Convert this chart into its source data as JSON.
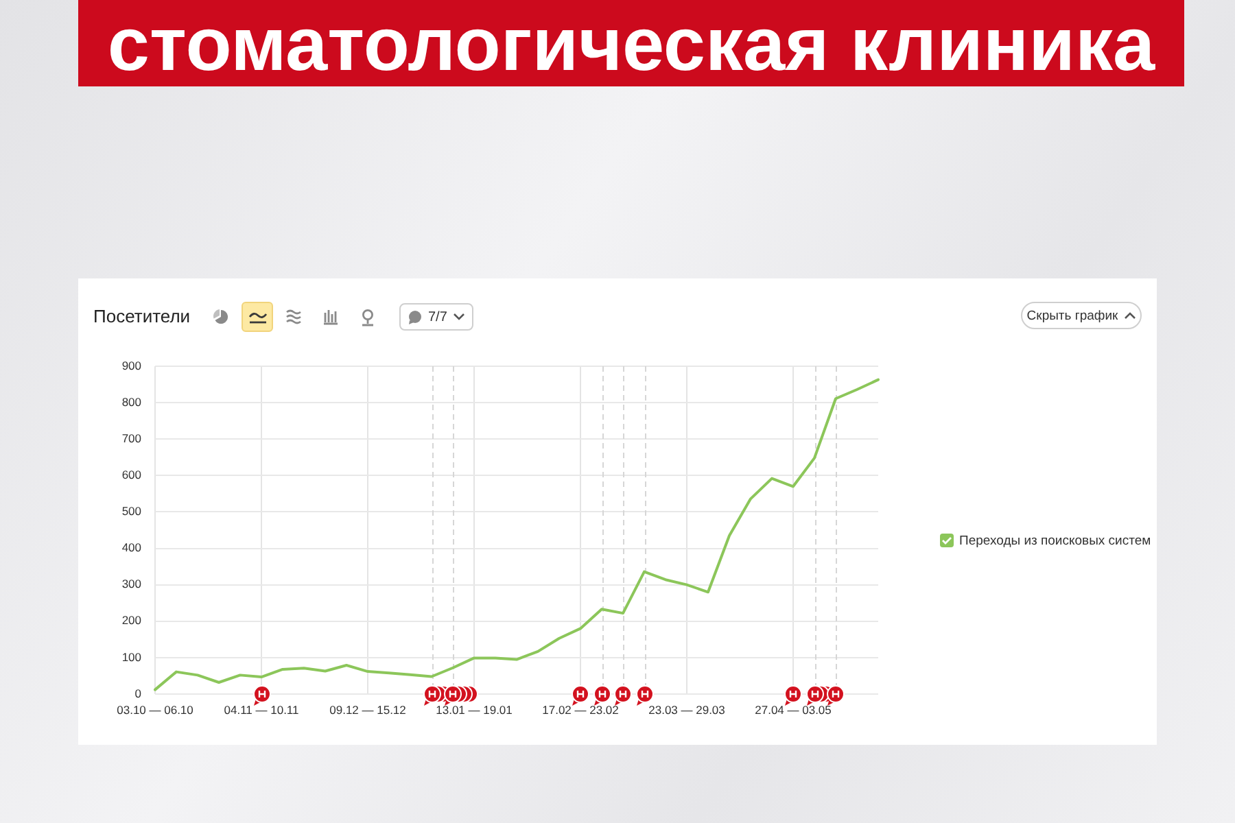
{
  "chart_data": {
    "type": "line",
    "title": "стоматологическая клиника",
    "subtitle": "Посетители",
    "categories": [
      "03.10 — 06.10",
      null,
      null,
      null,
      null,
      "04.11 — 10.11",
      null,
      null,
      null,
      null,
      "09.12 — 15.12",
      null,
      null,
      null,
      null,
      "13.01 — 19.01",
      null,
      null,
      null,
      null,
      "17.02 — 23.02",
      null,
      null,
      null,
      null,
      "23.03 — 29.03",
      null,
      null,
      null,
      null,
      "27.04 — 03.05",
      null,
      null,
      null,
      null
    ],
    "series": [
      {
        "name": "Переходы из поисковых систем",
        "color": "#8cc65a",
        "values": [
          12,
          61,
          52,
          32,
          52,
          47,
          68,
          71,
          63,
          79,
          62,
          58,
          53,
          48,
          72,
          99,
          99,
          95,
          117,
          153,
          180,
          233,
          222,
          336,
          314,
          300,
          280,
          435,
          536,
          592,
          570,
          648,
          811,
          836,
          863
        ]
      }
    ],
    "ylim": [
      0,
      900
    ],
    "yticks": [
      0,
      100,
      200,
      300,
      400,
      500,
      600,
      700,
      800,
      900
    ],
    "grid": true,
    "legend": "right",
    "marker": "none",
    "annotations": [
      "7/7",
      "Скрыть график"
    ]
  }
}
